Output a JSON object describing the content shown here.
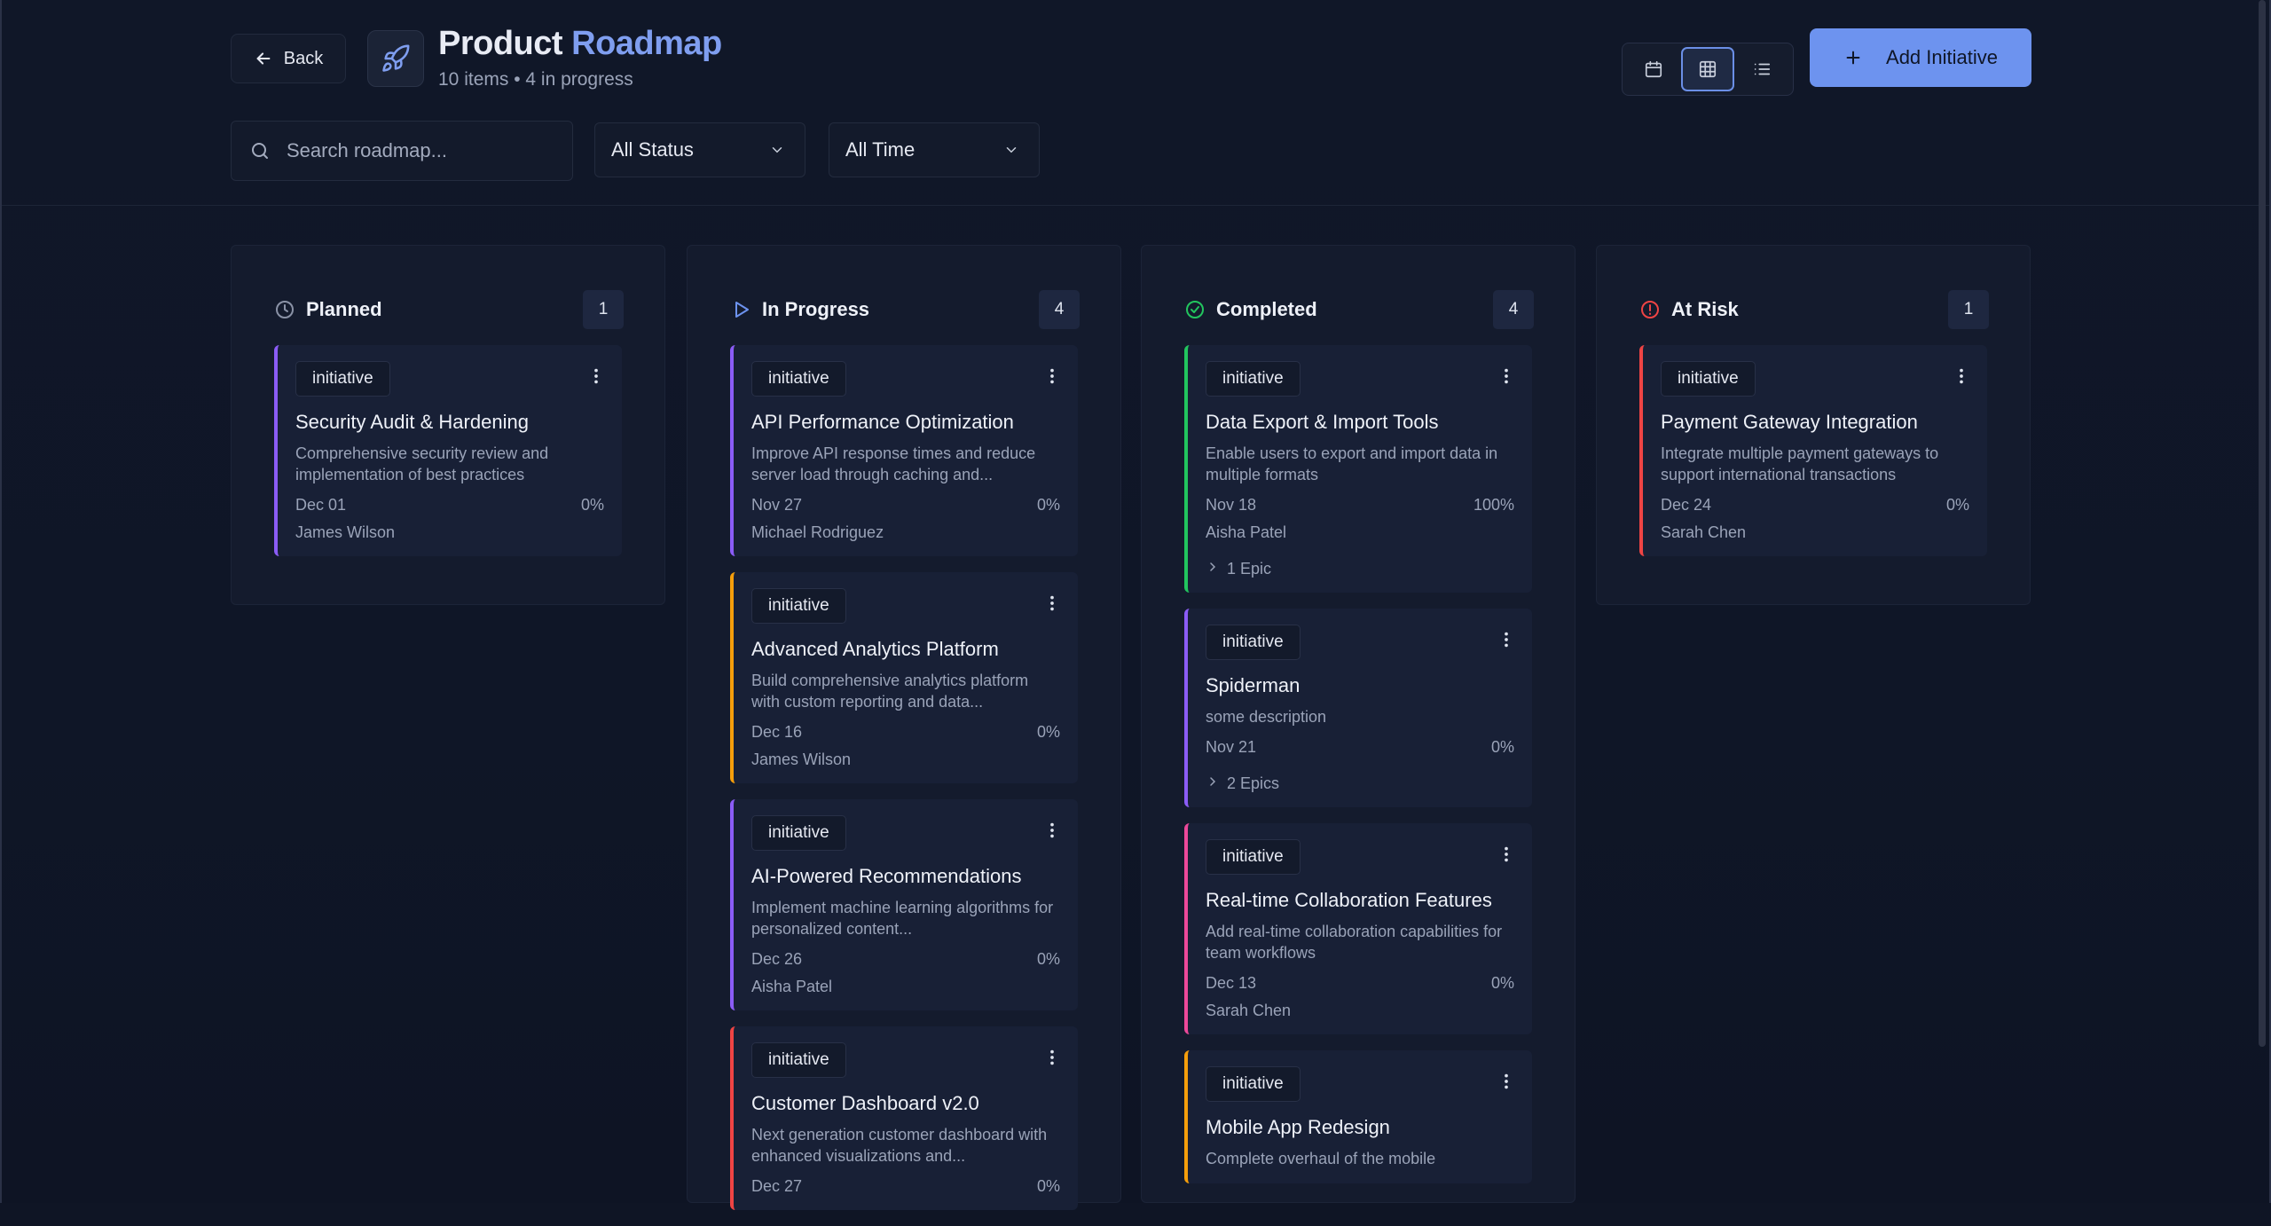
{
  "header": {
    "back_label": "Back",
    "title_word1": "Product",
    "title_word2": "Roadmap",
    "subtitle": "10 items • 4 in progress",
    "add_label": "Add Initiative",
    "accent": "#6d93ef",
    "view_modes": [
      "calendar",
      "board",
      "list"
    ],
    "active_view": "board"
  },
  "filters": {
    "search_placeholder": "Search roadmap...",
    "status_value": "All Status",
    "time_value": "All Time"
  },
  "columns": [
    {
      "name": "Planned",
      "count": "1",
      "icon": "clock-icon",
      "color": "#8a92a6",
      "cards": [
        {
          "tag": "initiative",
          "title": "Security Audit & Hardening",
          "desc": "Comprehensive security review and implementation of best practices",
          "date": "Dec 01",
          "progress": "0%",
          "owner": "James Wilson",
          "accent": "#8b5cf6"
        }
      ]
    },
    {
      "name": "In Progress",
      "count": "4",
      "icon": "play-icon",
      "color": "#6d93ef",
      "cards": [
        {
          "tag": "initiative",
          "title": "API Performance Optimization",
          "desc": "Improve API response times and reduce server load through caching and...",
          "date": "Nov 27",
          "progress": "0%",
          "owner": "Michael Rodriguez",
          "accent": "#8b5cf6"
        },
        {
          "tag": "initiative",
          "title": "Advanced Analytics Platform",
          "desc": "Build comprehensive analytics platform with custom reporting and data...",
          "date": "Dec 16",
          "progress": "0%",
          "owner": "James Wilson",
          "accent": "#f59e0b"
        },
        {
          "tag": "initiative",
          "title": "AI-Powered Recommendations",
          "desc": "Implement machine learning algorithms for personalized content...",
          "date": "Dec 26",
          "progress": "0%",
          "owner": "Aisha Patel",
          "accent": "#8b5cf6"
        },
        {
          "tag": "initiative",
          "title": "Customer Dashboard v2.0",
          "desc": "Next generation customer dashboard with enhanced visualizations and...",
          "date": "Dec 27",
          "progress": "0%",
          "owner": "",
          "accent": "#ef4444"
        }
      ]
    },
    {
      "name": "Completed",
      "count": "4",
      "icon": "check-circle-icon",
      "color": "#22c55e",
      "cards": [
        {
          "tag": "initiative",
          "title": "Data Export & Import Tools",
          "desc": "Enable users to export and import data in multiple formats",
          "date": "Nov 18",
          "progress": "100%",
          "owner": "Aisha Patel",
          "epic": "1 Epic",
          "accent": "#22c55e"
        },
        {
          "tag": "initiative",
          "title": "Spiderman",
          "desc": "some description",
          "date": "Nov 21",
          "progress": "0%",
          "owner": "",
          "epic": "2 Epics",
          "accent": "#8b5cf6"
        },
        {
          "tag": "initiative",
          "title": "Real-time Collaboration Features",
          "desc": "Add real-time collaboration capabilities for team workflows",
          "date": "Dec 13",
          "progress": "0%",
          "owner": "Sarah Chen",
          "accent": "#ec4899"
        },
        {
          "tag": "initiative",
          "title": "Mobile App Redesign",
          "desc": "Complete overhaul of the mobile",
          "date": "",
          "progress": "",
          "owner": "",
          "accent": "#f59e0b"
        }
      ]
    },
    {
      "name": "At Risk",
      "count": "1",
      "icon": "alert-circle-icon",
      "color": "#ef4444",
      "cards": [
        {
          "tag": "initiative",
          "title": "Payment Gateway Integration",
          "desc": "Integrate multiple payment gateways to support international transactions",
          "date": "Dec 24",
          "progress": "0%",
          "owner": "Sarah Chen",
          "accent": "#ef4444"
        }
      ]
    }
  ]
}
